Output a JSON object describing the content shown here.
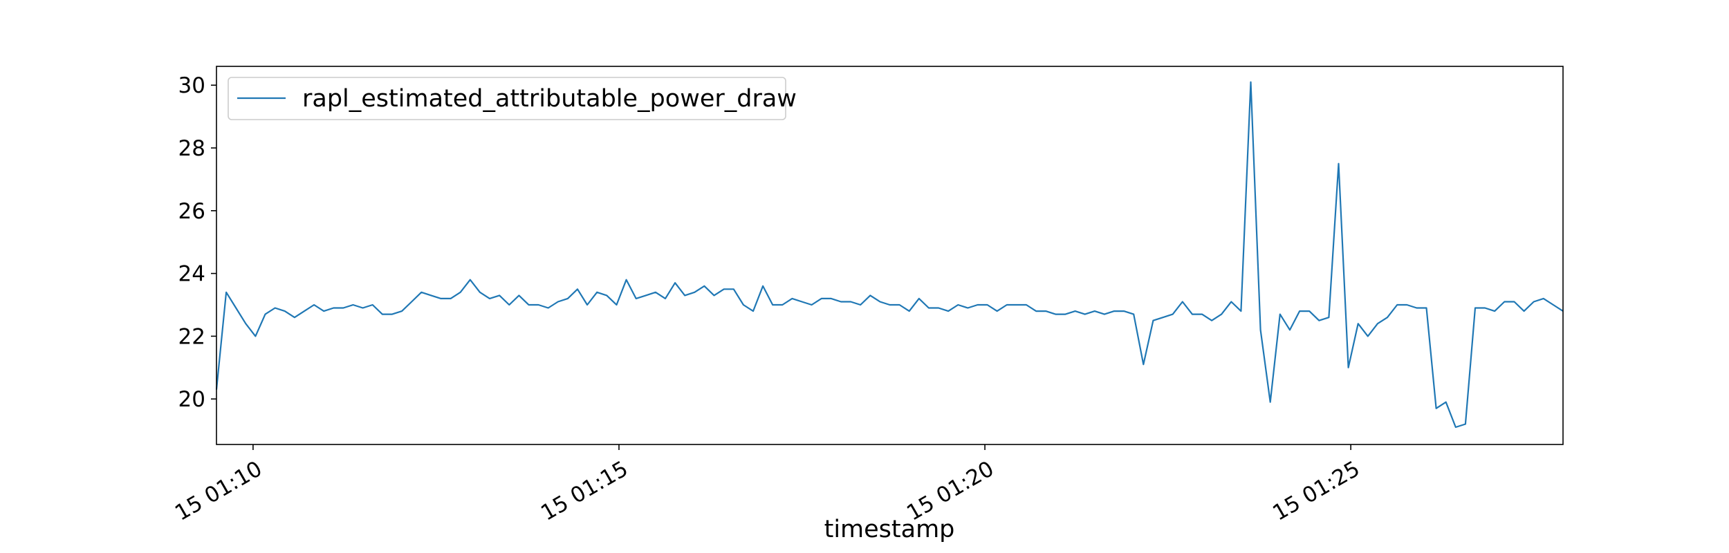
{
  "chart_data": {
    "type": "line",
    "title": "",
    "xlabel": "timestamp",
    "ylabel": "",
    "x_ticks": [
      {
        "time": "01:10",
        "label": "15 01:10"
      },
      {
        "time": "01:15",
        "label": "15 01:15"
      },
      {
        "time": "01:20",
        "label": "15 01:20"
      },
      {
        "time": "01:25",
        "label": "15 01:25"
      }
    ],
    "y_ticks": [
      20,
      22,
      24,
      26,
      28,
      30
    ],
    "xlim": [
      "01:09:30",
      "01:27:54"
    ],
    "ylim": [
      18.55,
      30.6
    ],
    "grid": false,
    "legend_position": "upper-left",
    "series": [
      {
        "name": "rapl_estimated_attributable_power_draw",
        "color": "#1f77b4",
        "x": [
          "01:09:30",
          "01:09:38",
          "01:09:46",
          "01:09:54",
          "01:10:02",
          "01:10:10",
          "01:10:18",
          "01:10:26",
          "01:10:34",
          "01:10:42",
          "01:10:50",
          "01:10:58",
          "01:11:06",
          "01:11:14",
          "01:11:22",
          "01:11:30",
          "01:11:38",
          "01:11:46",
          "01:11:54",
          "01:12:02",
          "01:12:10",
          "01:12:18",
          "01:12:26",
          "01:12:34",
          "01:12:42",
          "01:12:50",
          "01:12:58",
          "01:13:06",
          "01:13:14",
          "01:13:22",
          "01:13:30",
          "01:13:38",
          "01:13:46",
          "01:13:54",
          "01:14:02",
          "01:14:10",
          "01:14:18",
          "01:14:26",
          "01:14:34",
          "01:14:42",
          "01:14:50",
          "01:14:58",
          "01:15:06",
          "01:15:14",
          "01:15:22",
          "01:15:30",
          "01:15:38",
          "01:15:46",
          "01:15:54",
          "01:16:02",
          "01:16:10",
          "01:16:18",
          "01:16:26",
          "01:16:34",
          "01:16:42",
          "01:16:50",
          "01:16:58",
          "01:17:06",
          "01:17:14",
          "01:17:22",
          "01:17:30",
          "01:17:38",
          "01:17:46",
          "01:17:54",
          "01:18:02",
          "01:18:10",
          "01:18:18",
          "01:18:26",
          "01:18:34",
          "01:18:42",
          "01:18:50",
          "01:18:58",
          "01:19:06",
          "01:19:14",
          "01:19:22",
          "01:19:30",
          "01:19:38",
          "01:19:46",
          "01:19:54",
          "01:20:02",
          "01:20:10",
          "01:20:18",
          "01:20:26",
          "01:20:34",
          "01:20:42",
          "01:20:50",
          "01:20:58",
          "01:21:06",
          "01:21:14",
          "01:21:22",
          "01:21:30",
          "01:21:38",
          "01:21:46",
          "01:21:54",
          "01:22:02",
          "01:22:10",
          "01:22:18",
          "01:22:26",
          "01:22:34",
          "01:22:42",
          "01:22:50",
          "01:22:58",
          "01:23:06",
          "01:23:14",
          "01:23:22",
          "01:23:30",
          "01:23:38",
          "01:23:46",
          "01:23:54",
          "01:24:02",
          "01:24:10",
          "01:24:18",
          "01:24:26",
          "01:24:34",
          "01:24:42",
          "01:24:50",
          "01:24:58",
          "01:25:06",
          "01:25:14",
          "01:25:22",
          "01:25:30",
          "01:25:38",
          "01:25:46",
          "01:25:54",
          "01:26:02",
          "01:26:10",
          "01:26:18",
          "01:26:26",
          "01:26:34",
          "01:26:42",
          "01:26:50",
          "01:26:58",
          "01:27:06",
          "01:27:14",
          "01:27:22",
          "01:27:30",
          "01:27:38",
          "01:27:46",
          "01:27:54"
        ],
        "values": [
          20.3,
          23.4,
          22.9,
          22.4,
          22.0,
          22.7,
          22.9,
          22.8,
          22.6,
          22.8,
          23.0,
          22.8,
          22.9,
          22.9,
          23.0,
          22.9,
          23.0,
          22.7,
          22.7,
          22.8,
          23.1,
          23.4,
          23.3,
          23.2,
          23.2,
          23.4,
          23.8,
          23.4,
          23.2,
          23.3,
          23.0,
          23.3,
          23.0,
          23.0,
          22.9,
          23.1,
          23.2,
          23.5,
          23.0,
          23.4,
          23.3,
          23.0,
          23.8,
          23.2,
          23.3,
          23.4,
          23.2,
          23.7,
          23.3,
          23.4,
          23.6,
          23.3,
          23.5,
          23.5,
          23.0,
          22.8,
          23.6,
          23.0,
          23.0,
          23.2,
          23.1,
          23.0,
          23.2,
          23.2,
          23.1,
          23.1,
          23.0,
          23.3,
          23.1,
          23.0,
          23.0,
          22.8,
          23.2,
          22.9,
          22.9,
          22.8,
          23.0,
          22.9,
          23.0,
          23.0,
          22.8,
          23.0,
          23.0,
          23.0,
          22.8,
          22.8,
          22.7,
          22.7,
          22.8,
          22.7,
          22.8,
          22.7,
          22.8,
          22.8,
          22.7,
          21.1,
          22.5,
          22.6,
          22.7,
          23.1,
          22.7,
          22.7,
          22.5,
          22.7,
          23.1,
          22.8,
          30.1,
          22.2,
          19.9,
          22.7,
          22.2,
          22.8,
          22.8,
          22.5,
          22.6,
          27.5,
          21.0,
          22.4,
          22.0,
          22.4,
          22.6,
          23.0,
          23.0,
          22.9,
          22.9,
          19.7,
          19.9,
          19.1,
          19.2,
          22.9,
          22.9,
          22.8,
          23.1,
          23.1,
          22.8,
          23.1,
          23.2,
          23.0,
          22.8
        ]
      }
    ]
  }
}
